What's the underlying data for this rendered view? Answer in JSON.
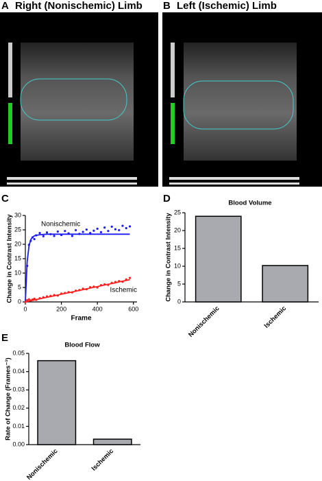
{
  "panels": [
    {
      "label": "A",
      "title": "Right (Nonischemic) Limb"
    },
    {
      "label": "B",
      "title": "Left (Ischemic) Limb"
    }
  ],
  "chart_data": [
    {
      "type": "scatter",
      "panel_label": "C",
      "xlabel": "Frame",
      "ylabel": "Change in Contrast Intensity",
      "x": [
        0,
        10,
        20,
        30,
        40,
        50,
        60,
        80,
        100,
        120,
        140,
        160,
        180,
        200,
        220,
        240,
        260,
        280,
        300,
        320,
        340,
        360,
        380,
        400,
        420,
        440,
        460,
        480,
        500,
        520,
        540,
        560,
        580
      ],
      "series": [
        {
          "name": "Nonischemic",
          "color": "#1a1aff",
          "values": [
            0,
            12.5,
            19.8,
            21.2,
            22.4,
            21.8,
            23.1,
            23.9,
            22.8,
            24.1,
            23.5,
            22.9,
            24.4,
            23.2,
            24.6,
            23.8,
            22.9,
            24.9,
            23.6,
            24.3,
            25.1,
            23.9,
            24.7,
            25.4,
            24.2,
            25.8,
            24.6,
            26.1,
            25.2,
            24.9,
            26.4,
            25.6,
            26.2
          ],
          "fit": [
            0,
            13.8,
            19.4,
            21.6,
            22.5,
            22.9,
            23.1,
            23.3,
            23.4,
            23.5,
            23.5,
            23.5,
            23.5,
            23.5,
            23.5,
            23.5,
            23.5,
            23.5,
            23.5,
            23.5,
            23.5,
            23.5,
            23.5,
            23.5,
            23.5,
            23.5,
            23.5,
            23.5,
            23.5,
            23.5,
            23.5,
            23.5,
            23.5
          ]
        },
        {
          "name": "Ischemic",
          "color": "#ff2020",
          "values": [
            0,
            0.6,
            0.9,
            0.5,
            0.8,
            1.1,
            0.7,
            1.3,
            1.6,
            1.9,
            2.1,
            2.4,
            2.2,
            2.9,
            3.1,
            3.4,
            3.3,
            3.9,
            4.1,
            4.6,
            4.4,
            5.1,
            5.3,
            5.0,
            5.8,
            6.1,
            5.9,
            6.6,
            6.9,
            7.2,
            7.0,
            7.8,
            8.3
          ],
          "fit": [
            0,
            0.13,
            0.27,
            0.4,
            0.53,
            0.67,
            0.8,
            1.06,
            1.33,
            1.6,
            1.86,
            2.13,
            2.39,
            2.66,
            2.93,
            3.19,
            3.46,
            3.72,
            3.99,
            4.26,
            4.52,
            4.79,
            5.05,
            5.32,
            5.59,
            5.85,
            6.12,
            6.38,
            6.65,
            6.92,
            7.18,
            7.45,
            7.71
          ]
        }
      ],
      "xlim": [
        0,
        620
      ],
      "xticks": [
        0,
        200,
        400,
        600
      ],
      "ylim": [
        0,
        30
      ],
      "yticks": [
        0,
        5,
        10,
        15,
        20,
        25,
        30
      ]
    },
    {
      "type": "bar",
      "panel_label": "D",
      "title": "Blood Volume",
      "ylabel": "Change in Contrast Intensity",
      "categories": [
        "Nonischemic",
        "Ischemic"
      ],
      "values": [
        24,
        10.2
      ],
      "color": "#a9a9b0",
      "ylim": [
        0,
        25
      ],
      "yticks": [
        0,
        5,
        10,
        15,
        20,
        25
      ]
    },
    {
      "type": "bar",
      "panel_label": "E",
      "title": "Blood Flow",
      "ylabel": "Rate of Change (Frames⁻¹)",
      "categories": [
        "Nonischemic",
        "Ischemic"
      ],
      "values": [
        0.046,
        0.003
      ],
      "color": "#a9a9b0",
      "ylim": [
        0,
        0.05
      ],
      "yticks": [
        {
          "value": 0,
          "label": "0.00"
        },
        {
          "value": 0.01,
          "label": "0.01"
        },
        {
          "value": 0.02,
          "label": "0.02"
        },
        {
          "value": 0.03,
          "label": "0.03"
        },
        {
          "value": 0.04,
          "label": "0.04"
        },
        {
          "value": 0.05,
          "label": "0.05"
        }
      ]
    }
  ]
}
